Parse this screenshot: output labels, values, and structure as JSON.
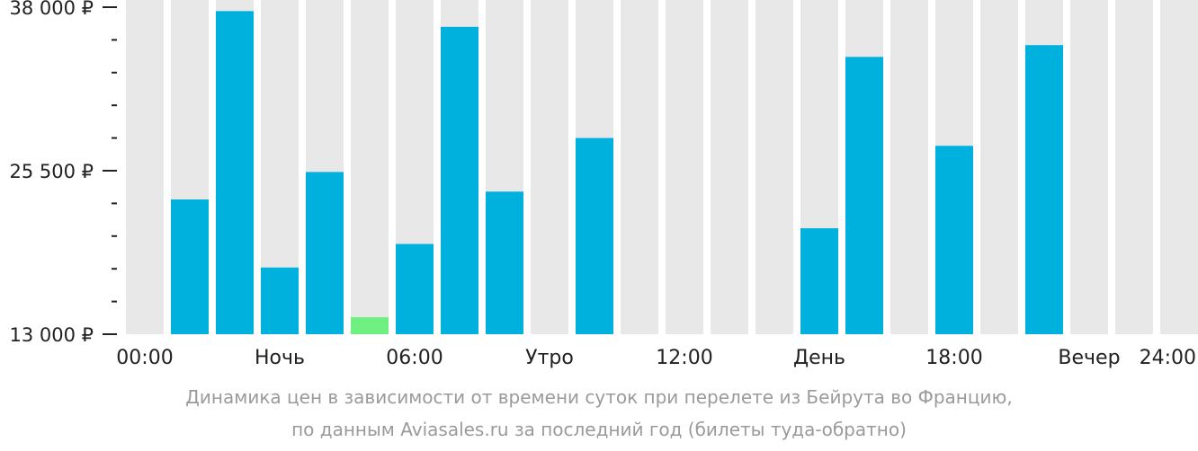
{
  "chart_data": {
    "type": "bar",
    "y_ticks": [
      "38 000 ₽",
      "25 500 ₽",
      "13 000 ₽"
    ],
    "y_tick_values": [
      38000,
      25500,
      13000
    ],
    "ylim": [
      13000,
      38000
    ],
    "x_ticks": [
      "00:00",
      "Ночь",
      "06:00",
      "Утро",
      "12:00",
      "День",
      "18:00",
      "Вечер",
      "24:00"
    ],
    "slot_count": 24,
    "values": [
      null,
      23300,
      37700,
      18100,
      25400,
      14300,
      19900,
      36500,
      23900,
      null,
      28000,
      null,
      null,
      null,
      null,
      21100,
      34200,
      null,
      27400,
      null,
      35100,
      null,
      null,
      null
    ],
    "colors": {
      "background_bar": "#e8e8e8",
      "bar": "#00b0dd",
      "min_bar": "#6ff080",
      "axis": "#222222"
    },
    "grid": false
  },
  "caption": {
    "line1": "Динамика цен в зависимости от времени суток при перелете из Бейрута во Францию,",
    "line2": "по данным Aviasales.ru за последний год (билеты туда-обратно)"
  }
}
